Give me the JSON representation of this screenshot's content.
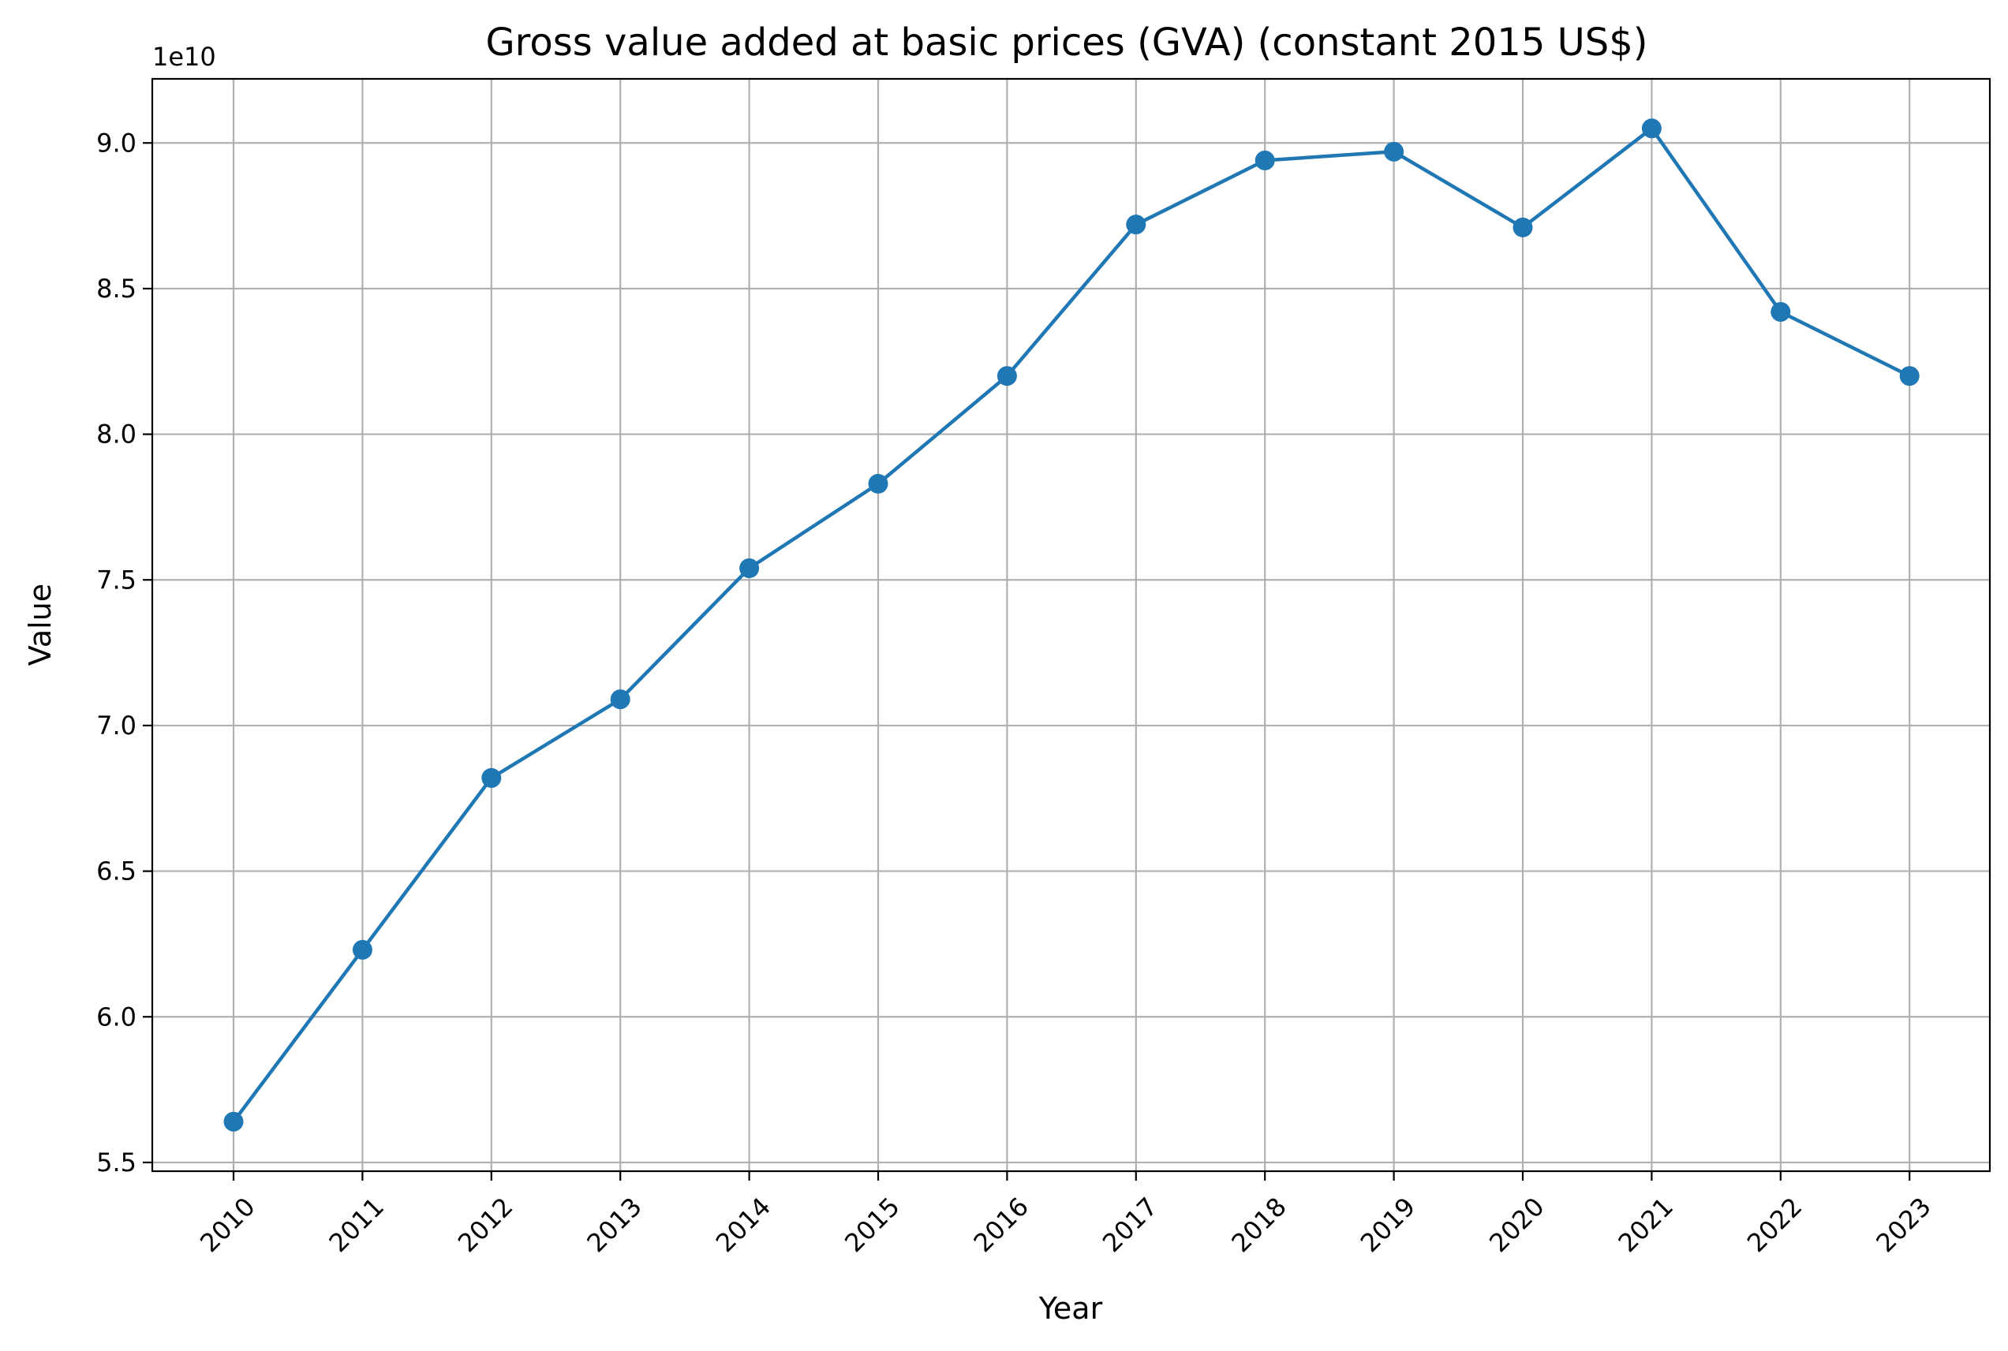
{
  "chart_data": {
    "type": "line",
    "title": "Gross value added at basic prices (GVA) (constant 2015 US$)",
    "xlabel": "Year",
    "ylabel": "Value",
    "y_offset_label": "1e10",
    "categories": [
      "2010",
      "2011",
      "2012",
      "2013",
      "2014",
      "2015",
      "2016",
      "2017",
      "2018",
      "2019",
      "2020",
      "2021",
      "2022",
      "2023"
    ],
    "series": [
      {
        "values": [
          56400000000,
          62300000000,
          68200000000,
          70900000000,
          75400000000,
          78300000000,
          82000000000,
          87200000000,
          89400000000,
          89700000000,
          87100000000,
          90500000000,
          84200000000,
          82000000000
        ],
        "color": "#1f77b4",
        "marker": "circle"
      }
    ],
    "ylim": [
      54700000000,
      92200000000
    ],
    "yticks": [
      {
        "value": 55000000000,
        "label": "5.5"
      },
      {
        "value": 60000000000,
        "label": "6.0"
      },
      {
        "value": 65000000000,
        "label": "6.5"
      },
      {
        "value": 70000000000,
        "label": "7.0"
      },
      {
        "value": 75000000000,
        "label": "7.5"
      },
      {
        "value": 80000000000,
        "label": "8.0"
      },
      {
        "value": 85000000000,
        "label": "8.5"
      },
      {
        "value": 90000000000,
        "label": "9.0"
      }
    ],
    "grid": true,
    "x_tick_rotation": 45
  }
}
